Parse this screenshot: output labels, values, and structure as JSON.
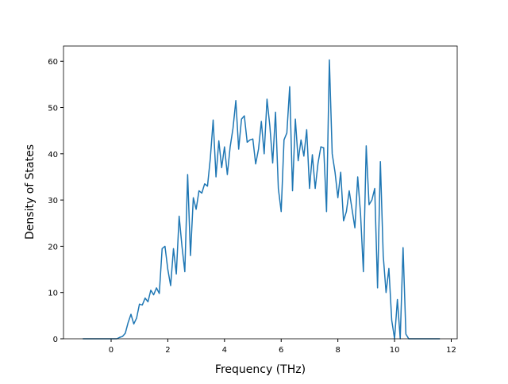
{
  "chart_data": {
    "type": "line",
    "x_label": "Frequency (THz)",
    "y_label": "Density of States",
    "x": [
      -1.0,
      -0.9,
      -0.8,
      -0.7,
      -0.6,
      -0.5,
      -0.4,
      -0.3,
      -0.2,
      -0.1,
      0.0,
      0.1,
      0.2,
      0.3,
      0.4,
      0.5,
      0.6,
      0.7,
      0.8,
      0.9,
      1.0,
      1.1,
      1.2,
      1.3,
      1.4,
      1.5,
      1.6,
      1.7,
      1.8,
      1.9,
      2.0,
      2.1,
      2.2,
      2.3,
      2.4,
      2.5,
      2.6,
      2.7,
      2.8,
      2.9,
      3.0,
      3.1,
      3.2,
      3.3,
      3.4,
      3.5,
      3.6,
      3.7,
      3.8,
      3.9,
      4.0,
      4.1,
      4.2,
      4.3,
      4.4,
      4.5,
      4.6,
      4.7,
      4.8,
      4.9,
      5.0,
      5.1,
      5.2,
      5.3,
      5.4,
      5.5,
      5.6,
      5.7,
      5.8,
      5.9,
      6.0,
      6.1,
      6.2,
      6.3,
      6.4,
      6.5,
      6.6,
      6.7,
      6.8,
      6.9,
      7.0,
      7.1,
      7.2,
      7.3,
      7.4,
      7.5,
      7.6,
      7.7,
      7.8,
      7.9,
      8.0,
      8.1,
      8.2,
      8.3,
      8.4,
      8.5,
      8.6,
      8.7,
      8.8,
      8.9,
      9.0,
      9.1,
      9.2,
      9.3,
      9.4,
      9.5,
      9.6,
      9.7,
      9.8,
      9.9,
      10.0,
      10.1,
      10.2,
      10.3,
      10.4,
      10.5,
      10.6,
      10.7,
      10.8,
      10.9,
      11.0,
      11.1,
      11.2,
      11.3,
      11.4,
      11.5,
      11.6
    ],
    "series": [
      {
        "color": "#1f77b4",
        "values": [
          0,
          0,
          0,
          0,
          0,
          0,
          0,
          0,
          0,
          0,
          0,
          0,
          0,
          0.3,
          0.5,
          1.2,
          3.5,
          5.3,
          3.2,
          4.5,
          7.5,
          7.3,
          8.8,
          8,
          10.5,
          9.5,
          11,
          9.8,
          19.5,
          20,
          15,
          11.5,
          19.5,
          14,
          26.5,
          20,
          14.5,
          35.5,
          18,
          30.5,
          28,
          32,
          31.5,
          33.5,
          33,
          39,
          47.3,
          35,
          42.8,
          37,
          41.5,
          35.5,
          41.5,
          45.5,
          51.5,
          41,
          47.5,
          48.2,
          42.5,
          43,
          43.2,
          37.8,
          41,
          47,
          40,
          51.8,
          46,
          38,
          49,
          32.5,
          27.5,
          43,
          44.5,
          54.5,
          32,
          47.5,
          38.5,
          43,
          39.5,
          45.2,
          32.5,
          39.8,
          32.5,
          38,
          41.5,
          41.3,
          27.5,
          60.3,
          40,
          36,
          30.5,
          36,
          25.5,
          27.5,
          32,
          28,
          24,
          35,
          27,
          14.5,
          41.7,
          29,
          30,
          32.5,
          11,
          38.3,
          18,
          10,
          15.2,
          4,
          0,
          8.5,
          0,
          19.7,
          1,
          0,
          0,
          0,
          0,
          0,
          0,
          0,
          0,
          0,
          0,
          0,
          0
        ]
      }
    ],
    "xlim": [
      -1.68,
      12.21
    ],
    "ylim": [
      0,
      63.3
    ],
    "xticks": [
      0,
      2,
      4,
      6,
      8,
      10,
      12
    ],
    "yticks": [
      0,
      10,
      20,
      30,
      40,
      50,
      60
    ]
  }
}
